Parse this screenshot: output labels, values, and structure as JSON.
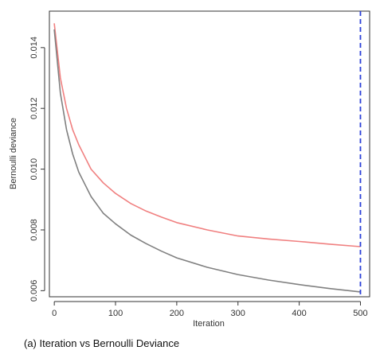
{
  "caption": "(a) Iteration vs Bernoulli Deviance",
  "chart_data": {
    "type": "line",
    "title": "",
    "xlabel": "Iteration",
    "ylabel": "Bernoulli deviance",
    "xlim": [
      -8,
      515
    ],
    "ylim": [
      0.0058,
      0.0152
    ],
    "x_ticks": [
      0,
      100,
      200,
      300,
      400,
      500
    ],
    "y_ticks": [
      0.006,
      0.008,
      0.01,
      0.012,
      0.014
    ],
    "y_tick_labels": [
      "0.006",
      "0.008",
      "0.010",
      "0.012",
      "0.014"
    ],
    "grid": false,
    "legend": "none",
    "x": [
      0,
      10,
      20,
      30,
      40,
      50,
      60,
      80,
      100,
      125,
      150,
      175,
      200,
      250,
      300,
      350,
      400,
      450,
      500
    ],
    "series": [
      {
        "color": "#f08080",
        "values": [
          0.0148,
          0.013,
          0.012,
          0.0113,
          0.0108,
          0.0104,
          0.01,
          0.00955,
          0.0092,
          0.00887,
          0.00862,
          0.00842,
          0.00824,
          0.008,
          0.0078,
          0.0077,
          0.00762,
          0.00753,
          0.00745
        ]
      },
      {
        "color": "#808080",
        "values": [
          0.0146,
          0.0125,
          0.0113,
          0.0105,
          0.0099,
          0.0095,
          0.0091,
          0.00855,
          0.0082,
          0.00783,
          0.00755,
          0.0073,
          0.00708,
          0.00677,
          0.00653,
          0.00635,
          0.0062,
          0.00607,
          0.00596
        ]
      }
    ],
    "vline": {
      "x": 500,
      "color": "#2a3fd8",
      "style": "dashed"
    }
  }
}
